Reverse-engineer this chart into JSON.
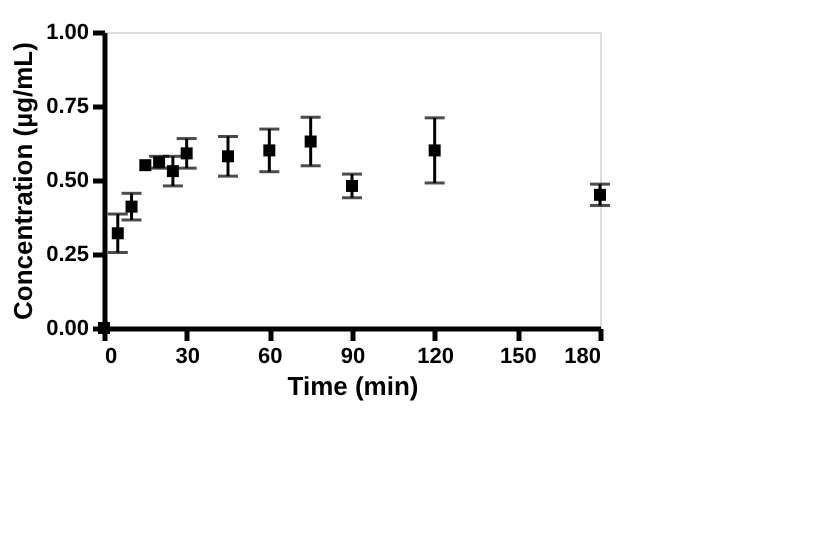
{
  "chart_data": {
    "type": "scatter",
    "xlabel": "Time (min)",
    "ylabel": "Concentration (µg/mL)",
    "x": [
      0,
      5,
      10,
      15,
      20,
      25,
      30,
      45,
      60,
      75,
      90,
      120,
      180
    ],
    "values": [
      0,
      0.32,
      0.41,
      0.55,
      0.56,
      0.53,
      0.59,
      0.58,
      0.6,
      0.63,
      0.48,
      0.6,
      0.45
    ],
    "errors": [
      null,
      0.065,
      0.045,
      null,
      0.02,
      0.05,
      0.05,
      0.067,
      0.072,
      0.082,
      0.04,
      0.11,
      0.036
    ],
    "color": "#000000",
    "marker": "square",
    "xlim": [
      0,
      180
    ],
    "xticks": [
      0,
      30,
      60,
      90,
      120,
      150,
      180
    ],
    "ylim": [
      0,
      1
    ],
    "yticks": [
      {
        "value": 0,
        "label": "0.00"
      },
      {
        "value": 0.25,
        "label": "0.25"
      },
      {
        "value": 0.5,
        "label": "0.50"
      },
      {
        "value": 0.75,
        "label": "0.75"
      },
      {
        "value": 1,
        "label": "1.00"
      }
    ],
    "grid": false
  }
}
